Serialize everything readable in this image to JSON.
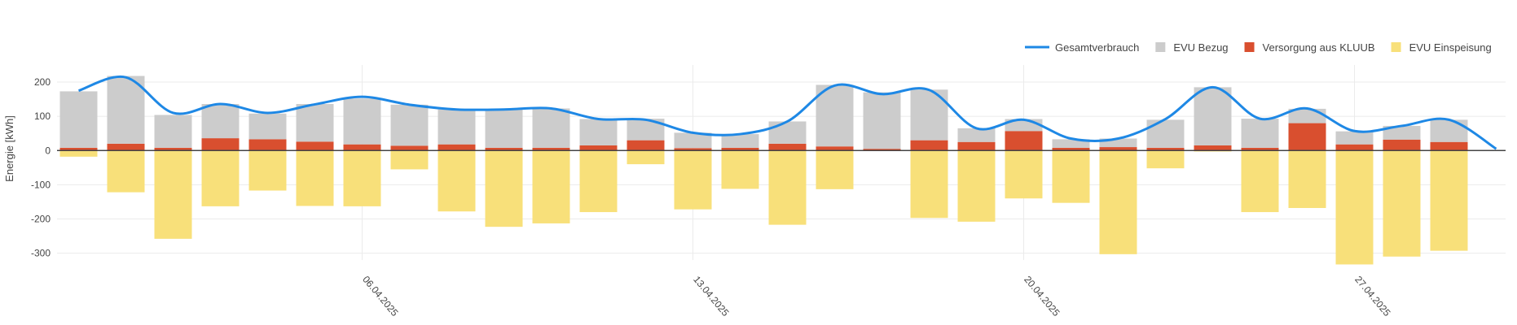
{
  "chart_data": {
    "type": "bar",
    "ylabel": "Energie [kWh]",
    "ylim": [
      -320,
      250
    ],
    "yticks": [
      200,
      100,
      0,
      -100,
      -200,
      -300
    ],
    "start_date": "2025-03-31",
    "x_tick_labels": [
      "06.04.2025",
      "13.04.2025",
      "20.04.2025",
      "27.04.2025"
    ],
    "x_tick_dates": [
      "2025-04-06",
      "2025-04-13",
      "2025-04-20",
      "2025-04-27"
    ],
    "grid": true,
    "legend_position": "top-right",
    "bar_mode": "stacked",
    "series": [
      {
        "key": "evu_bezug",
        "name": "EVU Bezug",
        "kind": "bar",
        "color": "#cccccc",
        "values": [
          165,
          198,
          96,
          100,
          75,
          110,
          134,
          120,
          102,
          112,
          115,
          77,
          63,
          45,
          40,
          65,
          180,
          165,
          148,
          40,
          35,
          25,
          25,
          82,
          170,
          85,
          42,
          38,
          40,
          65
        ]
      },
      {
        "key": "kluub",
        "name": "Versorgung aus KLUUB",
        "kind": "bar",
        "color": "#d94f2f",
        "values": [
          8,
          20,
          8,
          36,
          33,
          26,
          18,
          14,
          18,
          8,
          8,
          15,
          30,
          7,
          8,
          20,
          12,
          5,
          30,
          25,
          57,
          8,
          10,
          8,
          15,
          8,
          80,
          18,
          32,
          25
        ]
      },
      {
        "key": "evu_einspeisung",
        "name": "EVU Einspeisung",
        "kind": "bar",
        "color": "#f8e07a",
        "values": [
          -18,
          -122,
          -258,
          -163,
          -117,
          -162,
          -163,
          -55,
          -178,
          -223,
          -213,
          -180,
          -40,
          -172,
          -112,
          -217,
          -113,
          0,
          -197,
          -208,
          -140,
          -153,
          -303,
          -52,
          -3,
          -180,
          -168,
          -333,
          -310,
          -293
        ]
      },
      {
        "key": "gesamtverbrauch",
        "name": "Gesamtverbrauch",
        "kind": "line",
        "color": "#1e88e5",
        "values": [
          175,
          214,
          110,
          136,
          110,
          135,
          157,
          134,
          120,
          120,
          123,
          92,
          90,
          52,
          48,
          85,
          190,
          165,
          177,
          65,
          90,
          35,
          35,
          92,
          185,
          93,
          123,
          57,
          72,
          90,
          5
        ]
      }
    ]
  }
}
